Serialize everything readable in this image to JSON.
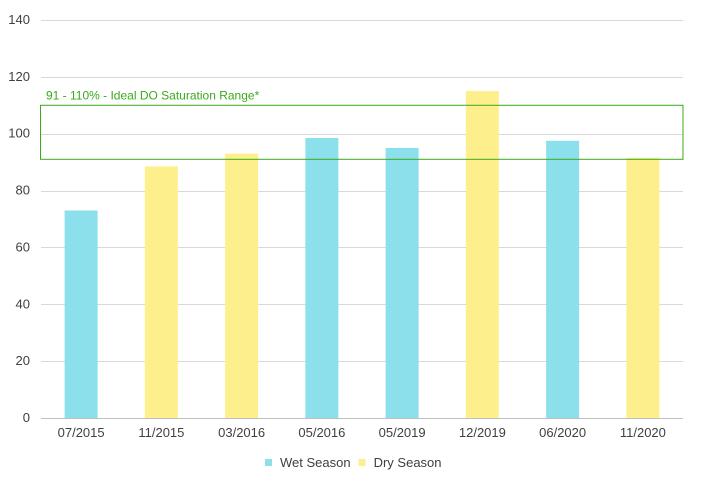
{
  "chart_data": {
    "type": "bar",
    "categories": [
      "07/2015",
      "11/2015",
      "03/2016",
      "05/2016",
      "05/2019",
      "12/2019",
      "06/2020",
      "11/2020"
    ],
    "values": [
      73,
      88.5,
      93,
      98.5,
      95,
      115,
      97.5,
      91.5
    ],
    "seasons": [
      "Wet Season",
      "Dry Season",
      "Dry Season",
      "Wet Season",
      "Wet Season",
      "Dry Season",
      "Wet Season",
      "Dry Season"
    ],
    "ylim": [
      0,
      140
    ],
    "yticks": [
      0,
      20,
      40,
      60,
      80,
      100,
      120,
      140
    ],
    "grid": true,
    "legend_position": "bottom",
    "legend": [
      {
        "name": "Wet Season",
        "color": "#8be0ec"
      },
      {
        "name": "Dry Season",
        "color": "#fdf08c"
      }
    ],
    "annotation": {
      "text": "91 - 110% - Ideal DO Saturation Range*",
      "y_min": 91,
      "y_max": 110,
      "color": "#3aaa1a"
    }
  }
}
